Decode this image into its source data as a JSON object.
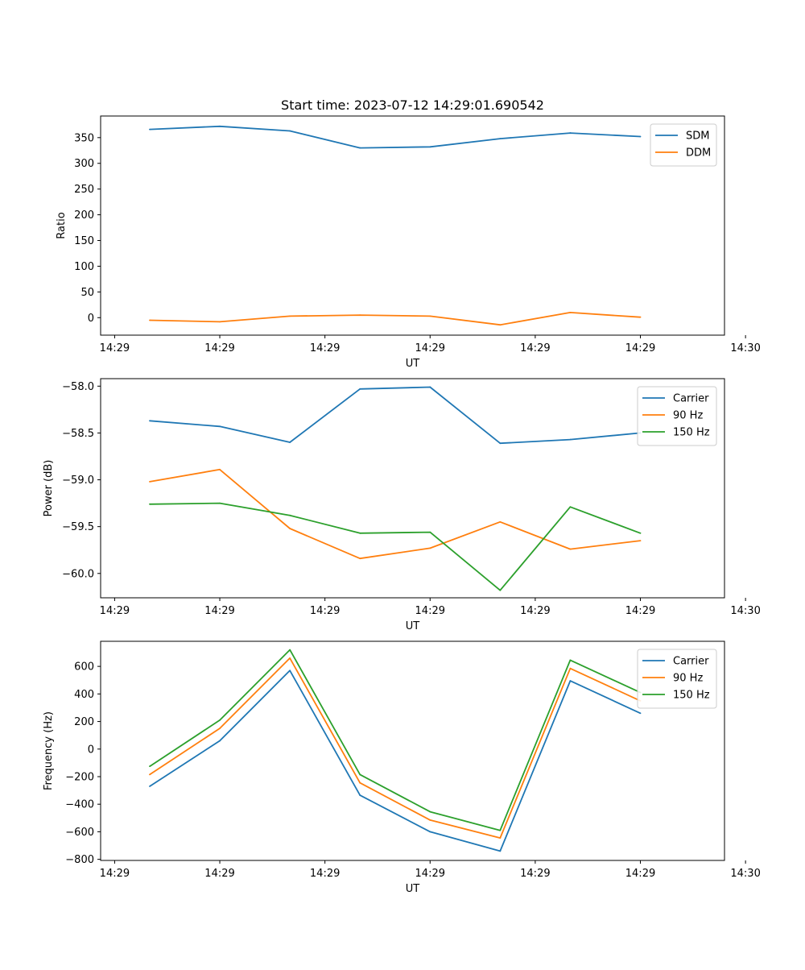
{
  "figure_title": "Start time: 2023-07-12 14:29:01.690542",
  "colors": {
    "blue": "#1f77b4",
    "orange": "#ff7f0e",
    "green": "#2ca02c"
  },
  "chart_data": [
    {
      "type": "line",
      "title": "Start time: 2023-07-12 14:29:01.690542",
      "xlabel": "UT",
      "ylabel": "Ratio",
      "x": [
        1,
        2,
        3,
        4,
        5,
        6,
        7,
        8
      ],
      "xlim": [
        0.3,
        9.2
      ],
      "x_ticks": [
        0.5,
        2,
        3.5,
        5,
        6.5,
        8,
        9.5
      ],
      "x_tick_labels": [
        "14:29",
        "14:29",
        "14:29",
        "14:29",
        "14:29",
        "14:29",
        "14:30"
      ],
      "ylim": [
        -34,
        392
      ],
      "y_ticks": [
        0,
        50,
        100,
        150,
        200,
        250,
        300,
        350
      ],
      "y_tick_labels": [
        "0",
        "50",
        "100",
        "150",
        "200",
        "250",
        "300",
        "350"
      ],
      "legend": "top-right",
      "series": [
        {
          "name": "SDM",
          "color": "#1f77b4",
          "values": [
            366,
            372,
            363,
            330,
            332,
            348,
            359,
            352
          ]
        },
        {
          "name": "DDM",
          "color": "#ff7f0e",
          "values": [
            -5,
            -8,
            3,
            5,
            3,
            -14,
            10,
            1
          ]
        }
      ]
    },
    {
      "type": "line",
      "title": "",
      "xlabel": "UT",
      "ylabel": "Power (dB)",
      "x": [
        1,
        2,
        3,
        4,
        5,
        6,
        7,
        8
      ],
      "xlim": [
        0.3,
        9.2
      ],
      "x_ticks": [
        0.5,
        2,
        3.5,
        5,
        6.5,
        8,
        9.5
      ],
      "x_tick_labels": [
        "14:29",
        "14:29",
        "14:29",
        "14:29",
        "14:29",
        "14:29",
        "14:30"
      ],
      "ylim": [
        -60.26,
        -57.92
      ],
      "y_ticks": [
        -60.0,
        -59.5,
        -59.0,
        -58.5,
        -58.0
      ],
      "y_tick_labels": [
        "−60.0",
        "−59.5",
        "−59.0",
        "−58.5",
        "−58.0"
      ],
      "legend": "top-right",
      "series": [
        {
          "name": "Carrier",
          "color": "#1f77b4",
          "values": [
            -58.37,
            -58.43,
            -58.6,
            -58.03,
            -58.01,
            -58.61,
            -58.57,
            -58.5
          ]
        },
        {
          "name": "90 Hz",
          "color": "#ff7f0e",
          "values": [
            -59.02,
            -58.89,
            -59.52,
            -59.84,
            -59.73,
            -59.45,
            -59.74,
            -59.65
          ]
        },
        {
          "name": "150 Hz",
          "color": "#2ca02c",
          "values": [
            -59.26,
            -59.25,
            -59.38,
            -59.57,
            -59.56,
            -60.18,
            -59.29,
            -59.57
          ]
        }
      ]
    },
    {
      "type": "line",
      "title": "",
      "xlabel": "UT",
      "ylabel": "Frequency (Hz)",
      "x": [
        1,
        2,
        3,
        4,
        5,
        6,
        7,
        8
      ],
      "xlim": [
        0.3,
        9.2
      ],
      "x_ticks": [
        0.5,
        2,
        3.5,
        5,
        6.5,
        8,
        9.5
      ],
      "x_tick_labels": [
        "14:29",
        "14:29",
        "14:29",
        "14:29",
        "14:29",
        "14:29",
        "14:30"
      ],
      "ylim": [
        -808,
        782
      ],
      "y_ticks": [
        -800,
        -600,
        -400,
        -200,
        0,
        200,
        400,
        600
      ],
      "y_tick_labels": [
        "−800",
        "−600",
        "−400",
        "−200",
        "0",
        "200",
        "400",
        "600"
      ],
      "legend": "top-right",
      "series": [
        {
          "name": "Carrier",
          "color": "#1f77b4",
          "values": [
            -270,
            60,
            570,
            -335,
            -600,
            -740,
            495,
            260
          ]
        },
        {
          "name": "90 Hz",
          "color": "#ff7f0e",
          "values": [
            -185,
            150,
            660,
            -245,
            -515,
            -645,
            585,
            350
          ]
        },
        {
          "name": "150 Hz",
          "color": "#2ca02c",
          "values": [
            -125,
            210,
            720,
            -185,
            -455,
            -590,
            645,
            410
          ]
        }
      ]
    }
  ]
}
